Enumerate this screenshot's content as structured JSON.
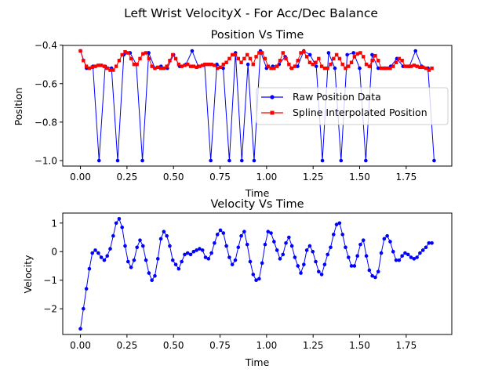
{
  "figure": {
    "suptitle": "Left Wrist VelocityX - For Acc/Dec Balance"
  },
  "colors": {
    "raw": "#0000ff",
    "spline": "#ff0000",
    "velocity": "#0000ff"
  },
  "chart_data": [
    {
      "type": "line",
      "title": "Position Vs Time",
      "xlabel": "Time",
      "ylabel": "Position",
      "xlim": [
        -0.095,
        1.995
      ],
      "ylim": [
        -1.0285,
        -0.4015
      ],
      "xticks": [
        0.0,
        0.25,
        0.5,
        0.75,
        1.0,
        1.25,
        1.5,
        1.75
      ],
      "xtick_labels": [
        "0.00",
        "0.25",
        "0.50",
        "0.75",
        "1.00",
        "1.25",
        "1.50",
        "1.75"
      ],
      "yticks": [
        -1.0,
        -0.8,
        -0.6,
        -0.4
      ],
      "ytick_labels": [
        "−1.0",
        "−0.8",
        "−0.6",
        "−0.4"
      ],
      "legend_position": "center-right",
      "series": [
        {
          "name": "Raw Position Data",
          "marker": "circle",
          "x": [
            0.0,
            0.033,
            0.067,
            0.1,
            0.133,
            0.167,
            0.2,
            0.233,
            0.267,
            0.3,
            0.333,
            0.367,
            0.4,
            0.433,
            0.467,
            0.5,
            0.533,
            0.567,
            0.6,
            0.633,
            0.667,
            0.7,
            0.733,
            0.767,
            0.8,
            0.833,
            0.867,
            0.9,
            0.933,
            0.967,
            1.0,
            1.033,
            1.067,
            1.1,
            1.133,
            1.167,
            1.2,
            1.233,
            1.267,
            1.3,
            1.333,
            1.367,
            1.4,
            1.433,
            1.467,
            1.5,
            1.533,
            1.567,
            1.6,
            1.633,
            1.667,
            1.7,
            1.733,
            1.767,
            1.8,
            1.833,
            1.867,
            1.9
          ],
          "y": [
            -0.43,
            -0.52,
            -0.51,
            -1.0,
            -0.51,
            -0.52,
            -1.0,
            -0.45,
            -0.44,
            -0.5,
            -1.0,
            -0.44,
            -0.52,
            -0.51,
            -0.52,
            -0.45,
            -0.51,
            -0.5,
            -0.43,
            -0.51,
            -0.5,
            -1.0,
            -0.5,
            -0.52,
            -1.0,
            -0.44,
            -1.0,
            -0.5,
            -1.0,
            -0.43,
            -0.52,
            -0.51,
            -0.5,
            -0.46,
            -0.52,
            -0.51,
            -0.43,
            -0.45,
            -0.51,
            -1.0,
            -0.44,
            -0.52,
            -1.0,
            -0.45,
            -0.44,
            -0.52,
            -1.0,
            -0.45,
            -0.52,
            -0.52,
            -0.51,
            -0.47,
            -0.51,
            -0.51,
            -0.43,
            -0.51,
            -0.52,
            -1.0
          ]
        },
        {
          "name": "Spline Interpolated Position",
          "marker": "square",
          "x": [
            0.0,
            0.016,
            0.032,
            0.048,
            0.064,
            0.08,
            0.096,
            0.112,
            0.128,
            0.144,
            0.16,
            0.176,
            0.192,
            0.208,
            0.224,
            0.24,
            0.256,
            0.272,
            0.288,
            0.304,
            0.32,
            0.336,
            0.352,
            0.368,
            0.384,
            0.4,
            0.416,
            0.432,
            0.448,
            0.464,
            0.48,
            0.496,
            0.512,
            0.528,
            0.544,
            0.56,
            0.576,
            0.592,
            0.608,
            0.624,
            0.64,
            0.656,
            0.672,
            0.688,
            0.704,
            0.72,
            0.736,
            0.752,
            0.768,
            0.784,
            0.8,
            0.816,
            0.832,
            0.848,
            0.864,
            0.88,
            0.896,
            0.912,
            0.928,
            0.944,
            0.96,
            0.976,
            0.992,
            1.008,
            1.024,
            1.04,
            1.056,
            1.072,
            1.088,
            1.104,
            1.12,
            1.136,
            1.152,
            1.168,
            1.184,
            1.2,
            1.216,
            1.232,
            1.248,
            1.264,
            1.28,
            1.296,
            1.312,
            1.328,
            1.344,
            1.36,
            1.376,
            1.392,
            1.408,
            1.424,
            1.44,
            1.456,
            1.472,
            1.488,
            1.504,
            1.52,
            1.536,
            1.552,
            1.568,
            1.584,
            1.6,
            1.616,
            1.632,
            1.648,
            1.664,
            1.68,
            1.696,
            1.712,
            1.728,
            1.744,
            1.76,
            1.776,
            1.792,
            1.808,
            1.824,
            1.84,
            1.856,
            1.872,
            1.888
          ],
          "y": [
            -0.43,
            -0.48,
            -0.51,
            -0.52,
            -0.515,
            -0.51,
            -0.505,
            -0.505,
            -0.51,
            -0.52,
            -0.53,
            -0.53,
            -0.51,
            -0.48,
            -0.45,
            -0.435,
            -0.44,
            -0.47,
            -0.5,
            -0.5,
            -0.47,
            -0.445,
            -0.44,
            -0.47,
            -0.51,
            -0.52,
            -0.515,
            -0.52,
            -0.52,
            -0.51,
            -0.48,
            -0.45,
            -0.47,
            -0.5,
            -0.51,
            -0.505,
            -0.5,
            -0.51,
            -0.51,
            -0.515,
            -0.51,
            -0.505,
            -0.5,
            -0.5,
            -0.5,
            -0.505,
            -0.52,
            -0.515,
            -0.5,
            -0.49,
            -0.47,
            -0.45,
            -0.45,
            -0.47,
            -0.49,
            -0.47,
            -0.45,
            -0.47,
            -0.5,
            -0.46,
            -0.44,
            -0.44,
            -0.47,
            -0.51,
            -0.52,
            -0.52,
            -0.51,
            -0.48,
            -0.44,
            -0.47,
            -0.5,
            -0.52,
            -0.51,
            -0.48,
            -0.44,
            -0.435,
            -0.46,
            -0.49,
            -0.5,
            -0.49,
            -0.47,
            -0.51,
            -0.52,
            -0.52,
            -0.5,
            -0.47,
            -0.45,
            -0.47,
            -0.5,
            -0.52,
            -0.51,
            -0.49,
            -0.46,
            -0.445,
            -0.44,
            -0.46,
            -0.5,
            -0.51,
            -0.48,
            -0.455,
            -0.48,
            -0.52,
            -0.52,
            -0.52,
            -0.52,
            -0.51,
            -0.49,
            -0.47,
            -0.48,
            -0.51,
            -0.51,
            -0.51,
            -0.505,
            -0.51,
            -0.515,
            -0.515,
            -0.52,
            -0.53,
            -0.52
          ]
        }
      ]
    },
    {
      "type": "line",
      "title": "Velocity Vs Time",
      "xlabel": "Time",
      "ylabel": "Velocity",
      "xlim": [
        -0.095,
        1.995
      ],
      "ylim": [
        -2.9,
        1.35
      ],
      "xticks": [
        0.0,
        0.25,
        0.5,
        0.75,
        1.0,
        1.25,
        1.5,
        1.75
      ],
      "xtick_labels": [
        "0.00",
        "0.25",
        "0.50",
        "0.75",
        "1.00",
        "1.25",
        "1.50",
        "1.75"
      ],
      "yticks": [
        -2,
        -1,
        0,
        1
      ],
      "ytick_labels": [
        "−2",
        "−1",
        "0",
        "1"
      ],
      "series": [
        {
          "marker": "circle",
          "x": [
            0.0,
            0.016,
            0.032,
            0.048,
            0.064,
            0.08,
            0.096,
            0.112,
            0.128,
            0.144,
            0.16,
            0.176,
            0.192,
            0.208,
            0.224,
            0.24,
            0.256,
            0.272,
            0.288,
            0.304,
            0.32,
            0.336,
            0.352,
            0.368,
            0.384,
            0.4,
            0.416,
            0.432,
            0.448,
            0.464,
            0.48,
            0.496,
            0.512,
            0.528,
            0.544,
            0.56,
            0.576,
            0.592,
            0.608,
            0.624,
            0.64,
            0.656,
            0.672,
            0.688,
            0.704,
            0.72,
            0.736,
            0.752,
            0.768,
            0.784,
            0.8,
            0.816,
            0.832,
            0.848,
            0.864,
            0.88,
            0.896,
            0.912,
            0.928,
            0.944,
            0.96,
            0.976,
            0.992,
            1.008,
            1.024,
            1.04,
            1.056,
            1.072,
            1.088,
            1.104,
            1.12,
            1.136,
            1.152,
            1.168,
            1.184,
            1.2,
            1.216,
            1.232,
            1.248,
            1.264,
            1.28,
            1.296,
            1.312,
            1.328,
            1.344,
            1.36,
            1.376,
            1.392,
            1.408,
            1.424,
            1.44,
            1.456,
            1.472,
            1.488,
            1.504,
            1.52,
            1.536,
            1.552,
            1.568,
            1.584,
            1.6,
            1.616,
            1.632,
            1.648,
            1.664,
            1.68,
            1.696,
            1.712,
            1.728,
            1.744,
            1.76,
            1.776,
            1.792,
            1.808,
            1.824,
            1.84,
            1.856,
            1.872,
            1.888
          ],
          "y": [
            -2.7,
            -2.0,
            -1.3,
            -0.6,
            -0.05,
            0.05,
            -0.05,
            -0.2,
            -0.3,
            -0.15,
            0.1,
            0.55,
            1.0,
            1.15,
            0.85,
            0.2,
            -0.35,
            -0.55,
            -0.3,
            0.15,
            0.4,
            0.2,
            -0.3,
            -0.75,
            -1.0,
            -0.85,
            -0.25,
            0.45,
            0.7,
            0.55,
            0.2,
            -0.3,
            -0.45,
            -0.6,
            -0.35,
            -0.1,
            -0.05,
            -0.1,
            0.0,
            0.05,
            0.1,
            0.05,
            -0.2,
            -0.25,
            -0.05,
            0.3,
            0.6,
            0.75,
            0.65,
            0.2,
            -0.2,
            -0.45,
            -0.3,
            0.15,
            0.55,
            0.7,
            0.25,
            -0.35,
            -0.8,
            -1.0,
            -0.95,
            -0.4,
            0.25,
            0.7,
            0.65,
            0.35,
            0.05,
            -0.25,
            -0.1,
            0.3,
            0.5,
            0.2,
            -0.2,
            -0.5,
            -0.75,
            -0.45,
            0.05,
            0.2,
            0.0,
            -0.35,
            -0.7,
            -0.8,
            -0.45,
            -0.1,
            0.15,
            0.6,
            0.95,
            1.0,
            0.6,
            0.15,
            -0.2,
            -0.5,
            -0.5,
            -0.15,
            0.25,
            0.4,
            -0.15,
            -0.65,
            -0.85,
            -0.9,
            -0.7,
            -0.05,
            0.45,
            0.55,
            0.35,
            0.0,
            -0.3,
            -0.3,
            -0.15,
            -0.05,
            -0.1,
            -0.2,
            -0.25,
            -0.2,
            -0.05,
            0.05,
            0.15,
            0.3,
            0.3
          ]
        }
      ]
    }
  ]
}
